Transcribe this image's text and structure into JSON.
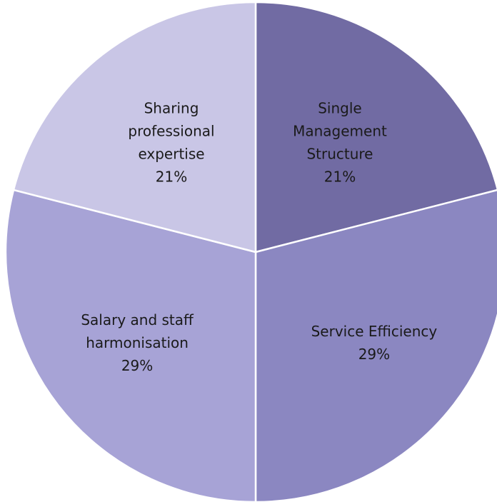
{
  "chart_data": {
    "type": "pie",
    "title": "",
    "start_angle_deg": 0,
    "direction": "clockwise",
    "slices": [
      {
        "label_lines": [
          "Single",
          "Management",
          "Structure"
        ],
        "percent_label": "21%",
        "value": 21,
        "color": "#716ba3"
      },
      {
        "label_lines": [
          "Service Efficiency"
        ],
        "percent_label": "29%",
        "value": 29,
        "color": "#8b87c1"
      },
      {
        "label_lines": [
          "Salary and staff",
          "harmonisation"
        ],
        "percent_label": "29%",
        "value": 29,
        "color": "#a7a3d6"
      },
      {
        "label_lines": [
          "Sharing",
          "professional",
          "expertise"
        ],
        "percent_label": "21%",
        "value": 21,
        "color": "#c9c6e6"
      }
    ]
  }
}
